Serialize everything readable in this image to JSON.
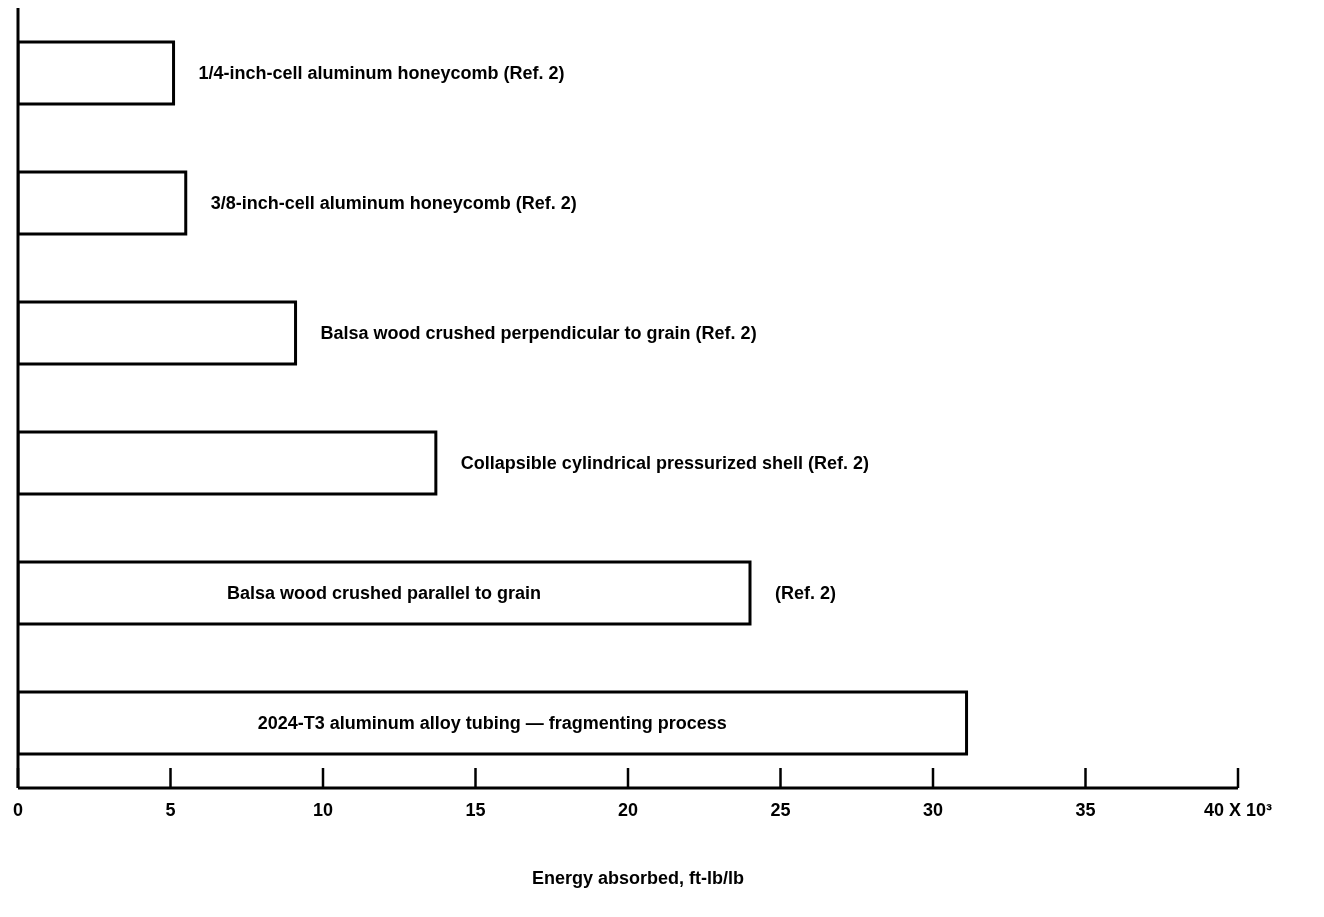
{
  "chart_data": {
    "type": "bar",
    "orientation": "horizontal",
    "xlabel": "Energy absorbed, ft-lb/lb",
    "categories": [
      "1/4-inch-cell aluminum honeycomb (Ref. 2)",
      "3/8-inch-cell aluminum honeycomb (Ref. 2)",
      "Balsa wood crushed perpendicular to grain (Ref. 2)",
      "Collapsible cylindrical pressurized shell (Ref. 2)",
      "Balsa wood crushed parallel to grain",
      "2024-T3 aluminum alloy tubing — fragmenting process"
    ],
    "values": [
      5.1,
      5.5,
      9.1,
      13.7,
      24.0,
      31.1
    ],
    "color": "#ffffff",
    "xlim": [
      0,
      40
    ],
    "xticks": [
      0,
      5,
      10,
      15,
      20,
      25,
      30,
      35,
      {
        "value": 40,
        "label": "40 X 10³"
      }
    ],
    "annotations": [
      {
        "text": "(Ref. 2)",
        "x": 24.0,
        "y": "Balsa wood crushed parallel to grain"
      }
    ],
    "grid": false
  }
}
